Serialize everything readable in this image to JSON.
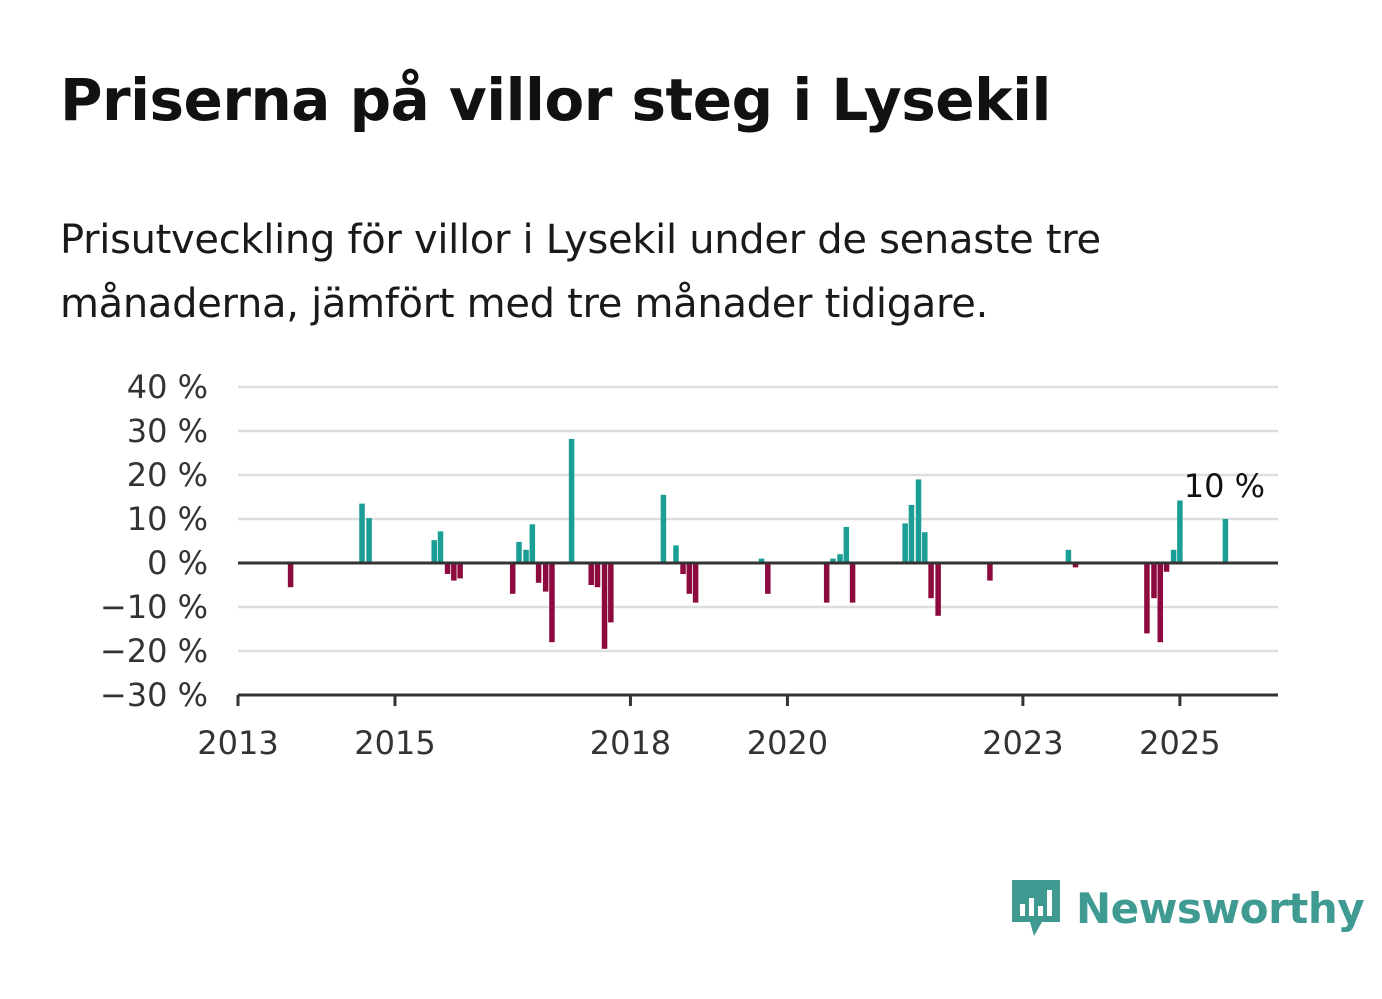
{
  "title": "Priserna på villor steg i Lysekil",
  "subtitle": "Prisutveckling för villor i Lysekil under de senaste tre månaderna, jämfört med tre månader tidigare.",
  "brand": {
    "name": "Newsworthy",
    "icon": "newsworthy-logo-icon"
  },
  "colors": {
    "positive": "#1a9e96",
    "negative": "#8c0a3d",
    "grid": "#dddddd",
    "axis": "#333333"
  },
  "chart_data": {
    "type": "bar",
    "ylim": [
      -30,
      40
    ],
    "y_ticks": [
      40,
      30,
      20,
      10,
      0,
      -10,
      -20,
      -30
    ],
    "y_tick_labels": [
      "40 %",
      "30 %",
      "20 %",
      "10 %",
      "0 %",
      "−10 %",
      "−20 %",
      "−30 %"
    ],
    "x_range": [
      2013.0,
      2026.25
    ],
    "x_ticks": [
      2013,
      2015,
      2018,
      2020,
      2023,
      2025
    ],
    "x_tick_labels": [
      "2013",
      "2015",
      "2018",
      "2020",
      "2023",
      "2025"
    ],
    "grid": true,
    "annotation": {
      "text": "10 %",
      "x": 2025.58,
      "y": 10
    },
    "points": [
      {
        "x": 2013.67,
        "y": -5.5
      },
      {
        "x": 2014.58,
        "y": 13.5
      },
      {
        "x": 2014.67,
        "y": 10.2
      },
      {
        "x": 2015.5,
        "y": 5.2
      },
      {
        "x": 2015.58,
        "y": 7.2
      },
      {
        "x": 2015.67,
        "y": -2.5
      },
      {
        "x": 2015.75,
        "y": -4.0
      },
      {
        "x": 2015.83,
        "y": -3.5
      },
      {
        "x": 2016.5,
        "y": -7.0
      },
      {
        "x": 2016.58,
        "y": 4.8
      },
      {
        "x": 2016.67,
        "y": 3.0
      },
      {
        "x": 2016.75,
        "y": 8.8
      },
      {
        "x": 2016.83,
        "y": -4.5
      },
      {
        "x": 2016.92,
        "y": -6.5
      },
      {
        "x": 2017.0,
        "y": -18.0
      },
      {
        "x": 2017.25,
        "y": 28.2
      },
      {
        "x": 2017.5,
        "y": -5.0
      },
      {
        "x": 2017.58,
        "y": -5.5
      },
      {
        "x": 2017.67,
        "y": -19.5
      },
      {
        "x": 2017.75,
        "y": -13.5
      },
      {
        "x": 2018.42,
        "y": 15.5
      },
      {
        "x": 2018.58,
        "y": 4.0
      },
      {
        "x": 2018.67,
        "y": -2.5
      },
      {
        "x": 2018.75,
        "y": -7.0
      },
      {
        "x": 2018.83,
        "y": -9.0
      },
      {
        "x": 2019.67,
        "y": 1.0
      },
      {
        "x": 2019.75,
        "y": -7.0
      },
      {
        "x": 2020.5,
        "y": -9.0
      },
      {
        "x": 2020.58,
        "y": 1.0
      },
      {
        "x": 2020.67,
        "y": 2.0
      },
      {
        "x": 2020.75,
        "y": 8.2
      },
      {
        "x": 2020.83,
        "y": -9.0
      },
      {
        "x": 2021.5,
        "y": 9.0
      },
      {
        "x": 2021.58,
        "y": 13.2
      },
      {
        "x": 2021.67,
        "y": 19.0
      },
      {
        "x": 2021.75,
        "y": 7.0
      },
      {
        "x": 2021.83,
        "y": -8.0
      },
      {
        "x": 2021.92,
        "y": -12.0
      },
      {
        "x": 2022.58,
        "y": -4.0
      },
      {
        "x": 2023.58,
        "y": 3.0
      },
      {
        "x": 2023.67,
        "y": -1.0
      },
      {
        "x": 2024.58,
        "y": -16.0
      },
      {
        "x": 2024.67,
        "y": -8.0
      },
      {
        "x": 2024.75,
        "y": -18.0
      },
      {
        "x": 2024.83,
        "y": -2.0
      },
      {
        "x": 2024.92,
        "y": 3.0
      },
      {
        "x": 2025.0,
        "y": 14.2
      },
      {
        "x": 2025.58,
        "y": 10.0
      }
    ]
  }
}
